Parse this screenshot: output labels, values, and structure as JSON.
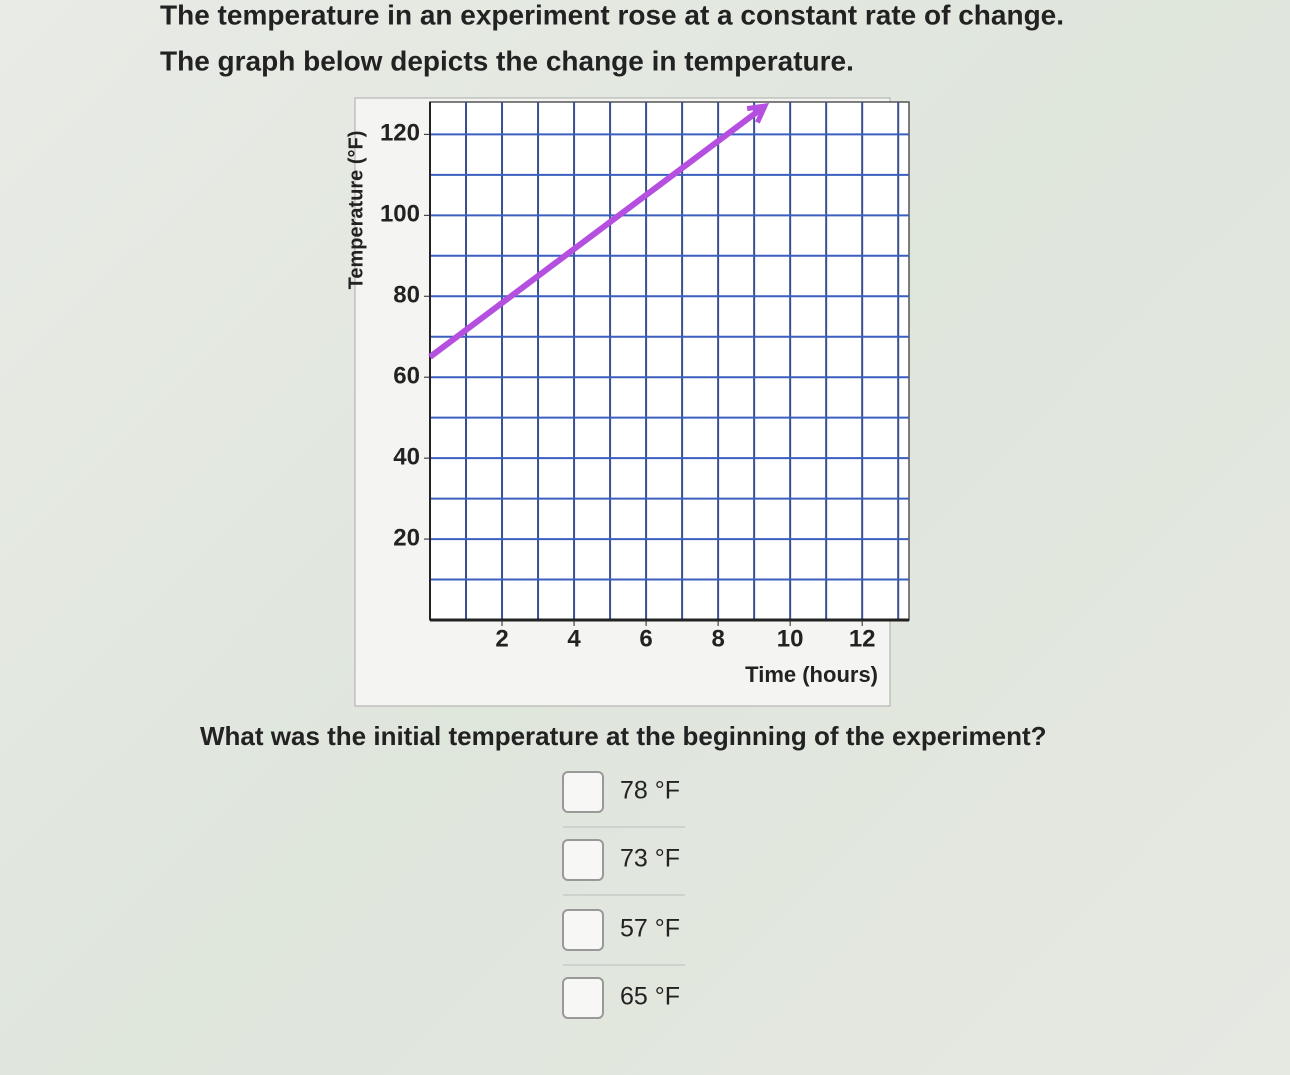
{
  "header": {
    "line1": "The temperature in an experiment rose at a constant rate of change.",
    "line2": "The graph below depicts the change in temperature."
  },
  "chart_data": {
    "type": "line",
    "x_label": "Time (hours)",
    "y_label": "Temperature (°F)",
    "xlim": [
      0,
      13.3
    ],
    "ylim": [
      0,
      128
    ],
    "xticks": [
      2,
      4,
      6,
      8,
      10,
      12
    ],
    "yticks": [
      20,
      40,
      60,
      80,
      100,
      120
    ],
    "xgrid": [
      1,
      2,
      3,
      4,
      5,
      6,
      7,
      8,
      9,
      10,
      11,
      12,
      13
    ],
    "ygrid": [
      10,
      20,
      30,
      40,
      50,
      60,
      70,
      80,
      90,
      100,
      110,
      120
    ],
    "grid": true,
    "series": [
      {
        "color": "#b44fe0",
        "x": [
          0,
          9.3
        ],
        "values": [
          65,
          127
        ]
      }
    ]
  },
  "question": "What was the initial temperature at the beginning of the experiment?",
  "options": [
    "78 °F",
    "73 °F",
    "57 °F",
    "65 °F"
  ]
}
